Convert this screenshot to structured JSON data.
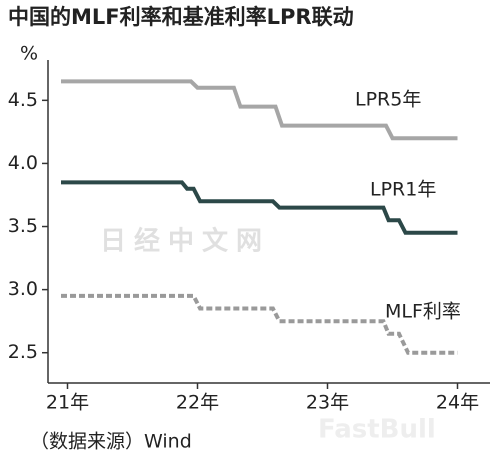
{
  "chart_data": {
    "type": "line",
    "title": "中国的MLF利率和基准利率LPR联动",
    "y_unit": "%",
    "source": "（数据来源）Wind",
    "watermarks": [
      "日经中文网",
      "FastBull"
    ],
    "xlim": [
      2020.85,
      2024.25
    ],
    "xticks": [
      {
        "value": 2021,
        "label": "21年"
      },
      {
        "value": 2022,
        "label": "22年"
      },
      {
        "value": 2023,
        "label": "23年"
      },
      {
        "value": 2024,
        "label": "24年"
      }
    ],
    "ylim": [
      2.26,
      4.78
    ],
    "yticks": [
      2.5,
      {
        "value": 3,
        "label": "3.0"
      },
      3.5,
      {
        "value": 4,
        "label": "4.0"
      },
      4.5
    ],
    "grid": false,
    "series": [
      {
        "name": "LPR5年",
        "color": "#a6a6a6",
        "dash": false,
        "x": [
          2020.95,
          2021.95,
          2022.0,
          2022.28,
          2022.33,
          2022.6,
          2022.65,
          2023.45,
          2023.5,
          2024.0
        ],
        "values": [
          4.65,
          4.65,
          4.6,
          4.6,
          4.45,
          4.45,
          4.3,
          4.3,
          4.2,
          4.2
        ]
      },
      {
        "name": "LPR1年",
        "color": "#2c4848",
        "dash": false,
        "x": [
          2020.95,
          2021.88,
          2021.92,
          2021.97,
          2022.02,
          2022.58,
          2022.63,
          2023.43,
          2023.47,
          2023.55,
          2023.6,
          2024.0
        ],
        "values": [
          3.85,
          3.85,
          3.8,
          3.8,
          3.7,
          3.7,
          3.65,
          3.65,
          3.55,
          3.55,
          3.45,
          3.45
        ]
      },
      {
        "name": "MLF利率",
        "color": "#9a9a9a",
        "dash": true,
        "x": [
          2020.95,
          2021.97,
          2022.02,
          2022.58,
          2022.63,
          2023.43,
          2023.47,
          2023.55,
          2023.62,
          2024.0
        ],
        "values": [
          2.95,
          2.95,
          2.85,
          2.85,
          2.75,
          2.75,
          2.65,
          2.65,
          2.5,
          2.5
        ]
      }
    ]
  }
}
